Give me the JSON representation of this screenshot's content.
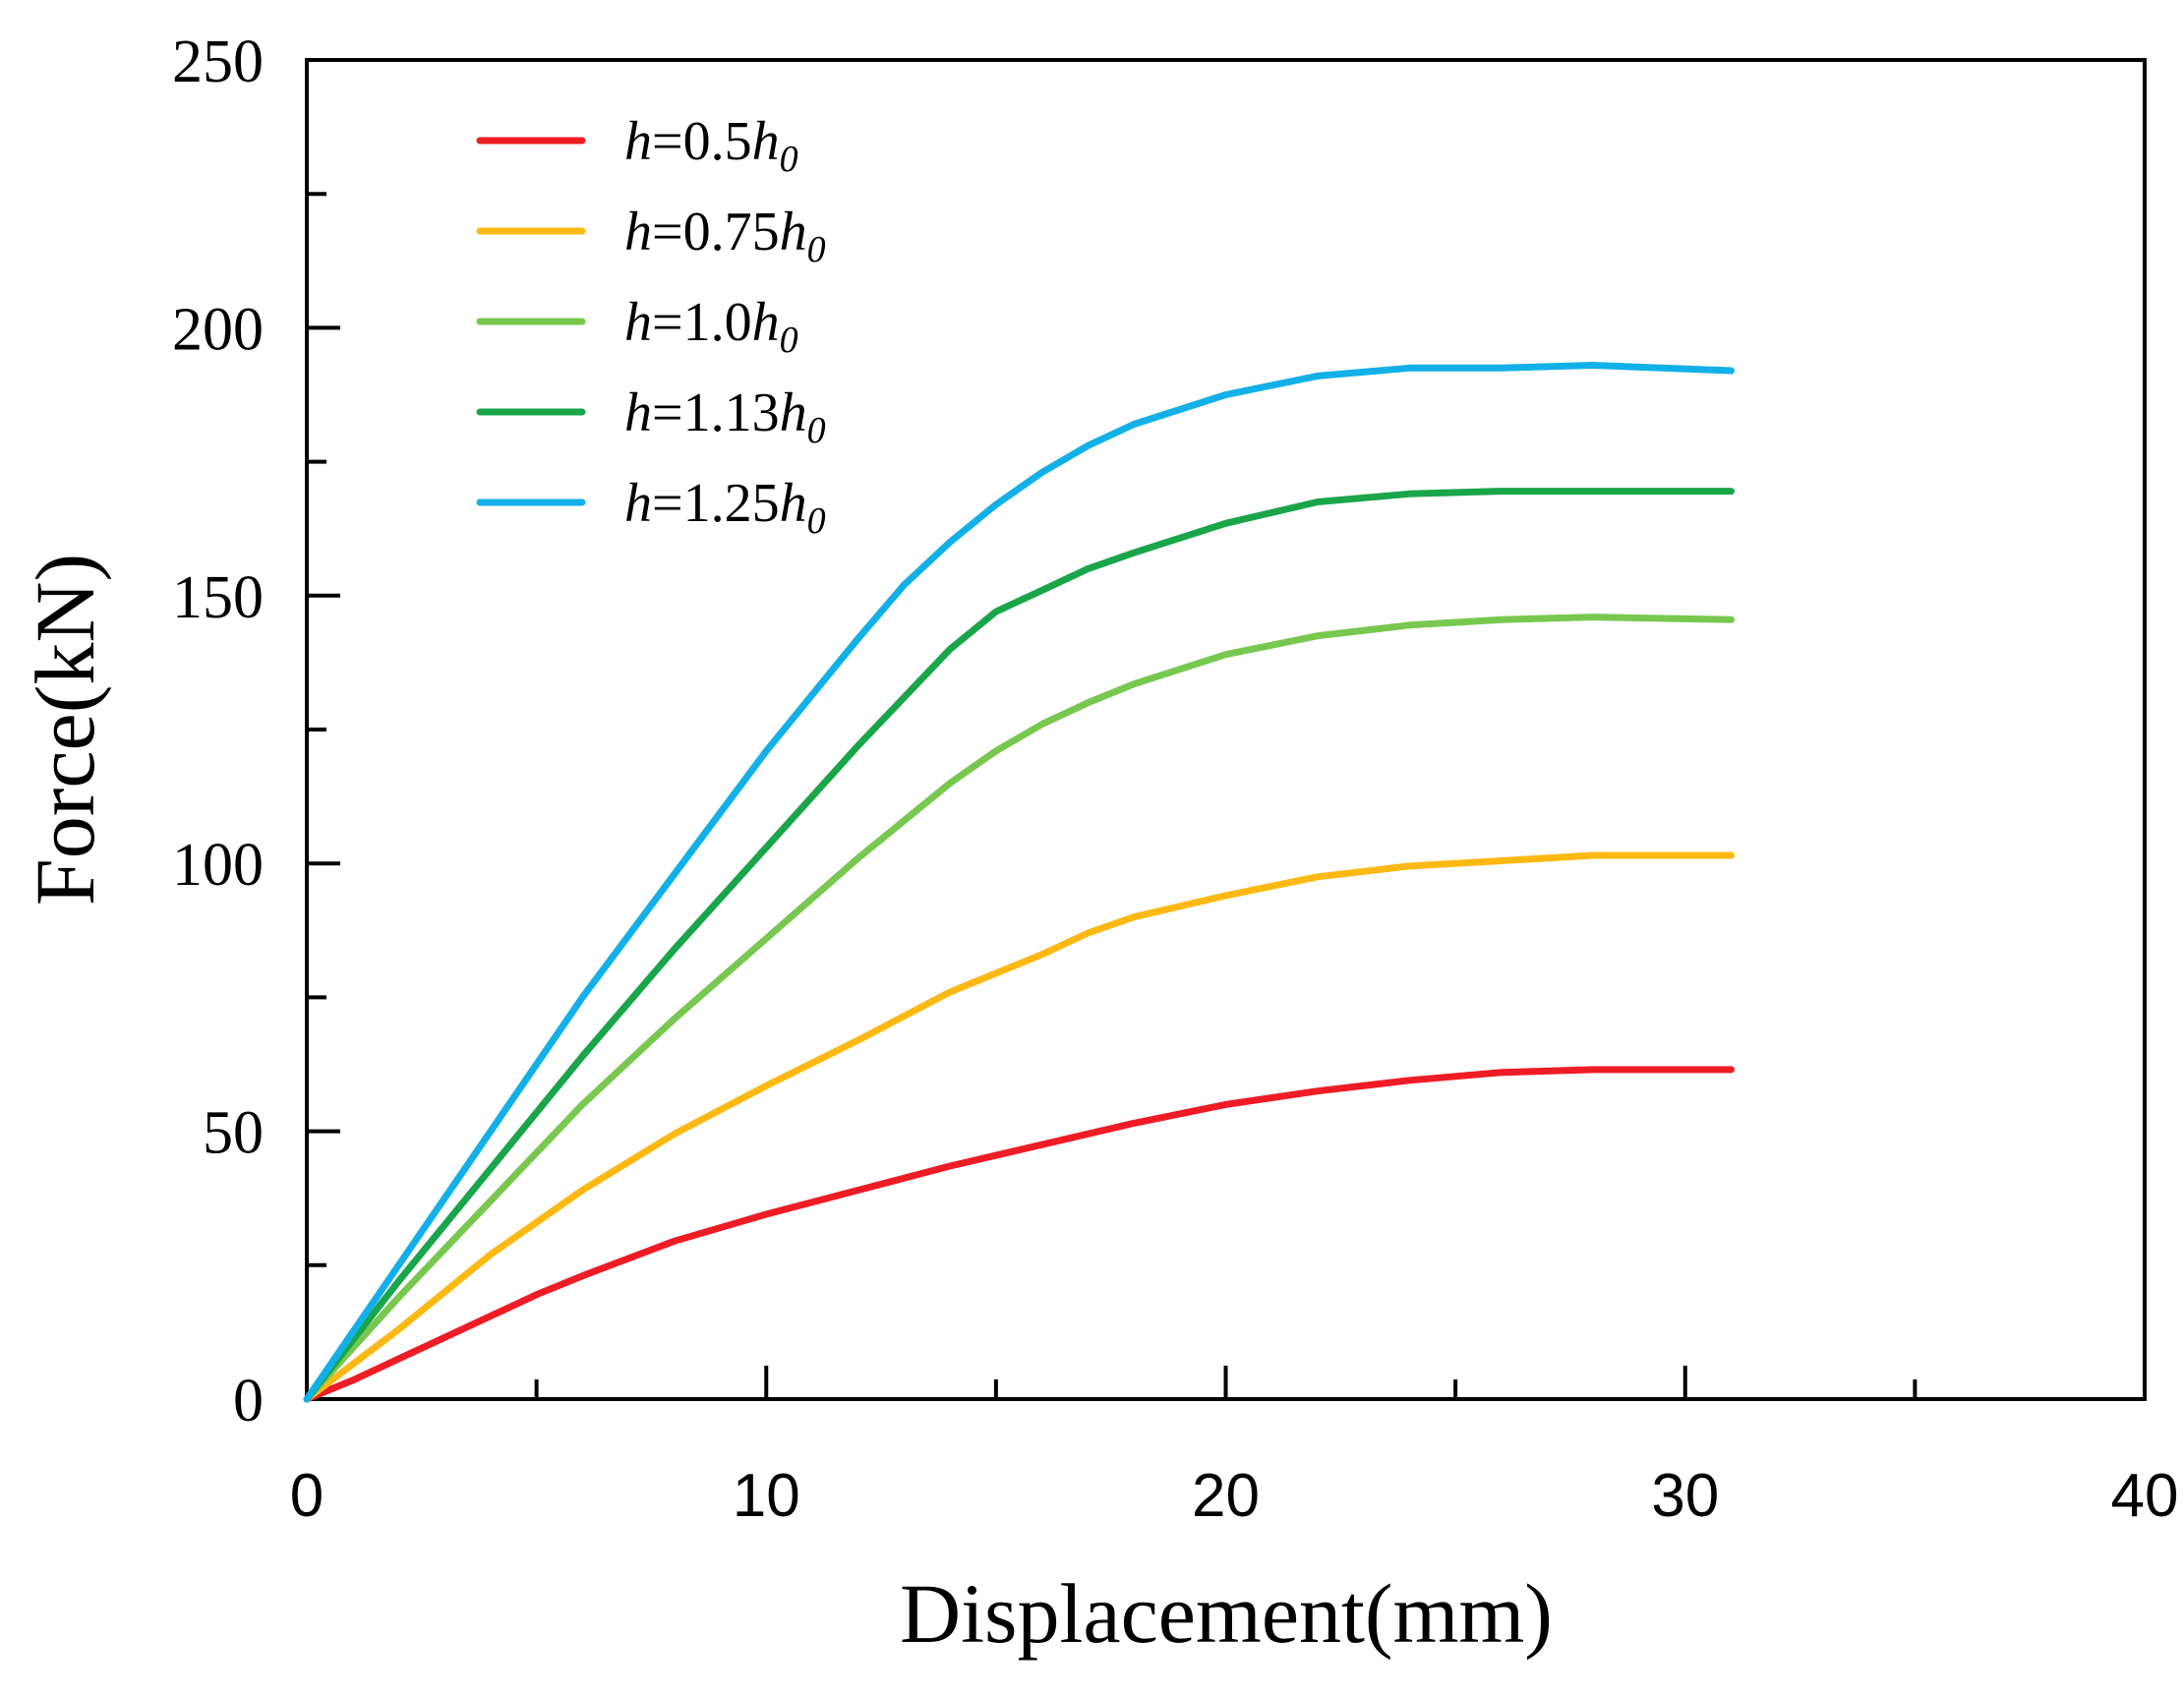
{
  "chart_data": {
    "type": "line",
    "title": "",
    "xlabel": "Displacement(mm)",
    "ylabel": "Force(kN)",
    "xlim": [
      0,
      40
    ],
    "ylim": [
      0,
      250
    ],
    "x_major_ticks": [
      0,
      10,
      20,
      30,
      40
    ],
    "x_minor_ticks": [
      5,
      15,
      25,
      35
    ],
    "y_major_ticks": [
      0,
      50,
      100,
      150,
      200,
      250
    ],
    "y_minor_ticks": [
      25,
      75,
      125,
      175,
      225
    ],
    "x_tick_labels": [
      "0",
      "10",
      "20",
      "30",
      "40"
    ],
    "y_tick_labels": [
      "0",
      "50",
      "100",
      "150",
      "200",
      "250"
    ],
    "grid": false,
    "legend_position": "top-left",
    "series": [
      {
        "name": "h=0.5h0",
        "label_parts": [
          "h",
          "=0.5",
          "h",
          "0"
        ],
        "color": "#ee1c25",
        "points": [
          [
            0,
            0
          ],
          [
            1,
            3.5
          ],
          [
            2,
            7.5
          ],
          [
            3,
            11.5
          ],
          [
            4,
            15.5
          ],
          [
            5,
            19.5
          ],
          [
            6,
            23
          ],
          [
            8,
            29.5
          ],
          [
            10,
            34.5
          ],
          [
            12,
            39
          ],
          [
            14,
            43.5
          ],
          [
            16,
            47.5
          ],
          [
            18,
            51.5
          ],
          [
            20,
            55
          ],
          [
            22,
            57.5
          ],
          [
            24,
            59.5
          ],
          [
            26,
            61
          ],
          [
            28,
            61.5
          ],
          [
            31,
            61.5
          ]
        ]
      },
      {
        "name": "h=0.75h0",
        "label_parts": [
          "h",
          "=0.75",
          "h",
          "0"
        ],
        "color": "#fdb913",
        "points": [
          [
            0,
            0
          ],
          [
            1,
            6.5
          ],
          [
            2,
            13
          ],
          [
            3,
            20
          ],
          [
            4,
            27
          ],
          [
            5,
            33
          ],
          [
            6,
            39
          ],
          [
            8,
            49.5
          ],
          [
            10,
            58.5
          ],
          [
            12,
            67
          ],
          [
            14,
            76
          ],
          [
            16,
            83
          ],
          [
            17,
            87
          ],
          [
            18,
            90
          ],
          [
            20,
            94
          ],
          [
            22,
            97.5
          ],
          [
            24,
            99.5
          ],
          [
            26,
            100.5
          ],
          [
            28,
            101.5
          ],
          [
            31,
            101.5
          ]
        ]
      },
      {
        "name": "h=1.0h0",
        "label_parts": [
          "h",
          "=1.0",
          "h",
          "0"
        ],
        "color": "#78c850",
        "points": [
          [
            0,
            0
          ],
          [
            1,
            9.5
          ],
          [
            2,
            19
          ],
          [
            4,
            37
          ],
          [
            6,
            55
          ],
          [
            8,
            71
          ],
          [
            10,
            86
          ],
          [
            12,
            101
          ],
          [
            14,
            115
          ],
          [
            15,
            121
          ],
          [
            16,
            126
          ],
          [
            17,
            130
          ],
          [
            18,
            133.5
          ],
          [
            20,
            139
          ],
          [
            22,
            142.5
          ],
          [
            24,
            144.5
          ],
          [
            26,
            145.5
          ],
          [
            28,
            146
          ],
          [
            31,
            145.5
          ]
        ]
      },
      {
        "name": "h=1.13h0",
        "label_parts": [
          "h",
          "=1.13",
          "h",
          "0"
        ],
        "color": "#1aa54a",
        "points": [
          [
            0,
            0
          ],
          [
            1,
            11
          ],
          [
            2,
            22
          ],
          [
            4,
            43
          ],
          [
            6,
            64
          ],
          [
            8,
            84
          ],
          [
            10,
            103
          ],
          [
            12,
            122
          ],
          [
            14,
            140
          ],
          [
            15,
            147
          ],
          [
            16,
            151
          ],
          [
            17,
            155
          ],
          [
            18,
            158
          ],
          [
            20,
            163.5
          ],
          [
            22,
            167.5
          ],
          [
            24,
            169
          ],
          [
            26,
            169.5
          ],
          [
            28,
            169.5
          ],
          [
            31,
            169.5
          ]
        ]
      },
      {
        "name": "h=1.25h0",
        "label_parts": [
          "h",
          "=1.25",
          "h",
          "0"
        ],
        "color": "#13b0e8",
        "points": [
          [
            0,
            0
          ],
          [
            1,
            12.5
          ],
          [
            2,
            25
          ],
          [
            4,
            50
          ],
          [
            6,
            75
          ],
          [
            8,
            98
          ],
          [
            10,
            121
          ],
          [
            12,
            142
          ],
          [
            13,
            152
          ],
          [
            14,
            160
          ],
          [
            15,
            167
          ],
          [
            16,
            173
          ],
          [
            17,
            178
          ],
          [
            18,
            182
          ],
          [
            20,
            187.5
          ],
          [
            22,
            191
          ],
          [
            24,
            192.5
          ],
          [
            26,
            192.5
          ],
          [
            28,
            193
          ],
          [
            31,
            192
          ]
        ]
      }
    ]
  }
}
